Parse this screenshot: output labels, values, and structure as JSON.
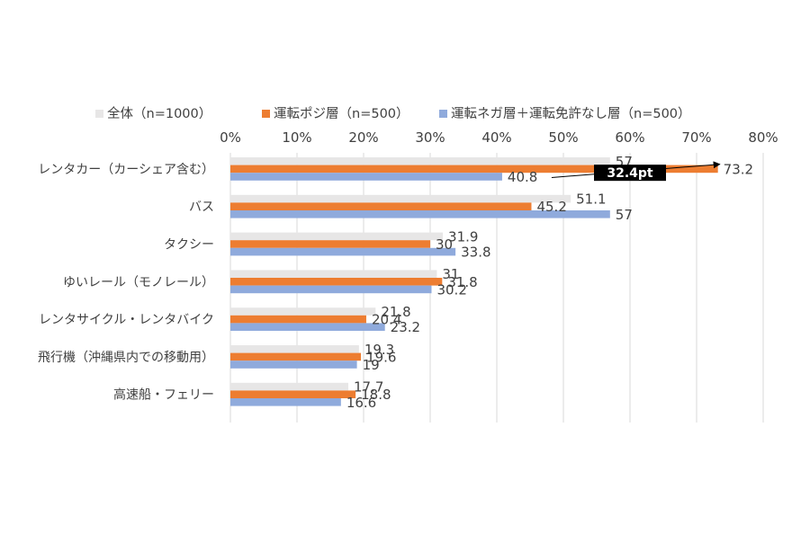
{
  "chart_data": {
    "type": "bar",
    "orientation": "horizontal",
    "categories": [
      "レンタカー（カーシェア含む）",
      "バス",
      "タクシー",
      "ゆいレール（モノレール）",
      "レンタサイクル・レンタバイク",
      "飛行機（沖縄県内での移動用）",
      "高速船・フェリー"
    ],
    "series": [
      {
        "name": "全体（n=1000）",
        "color": "#e7e6e6",
        "values": [
          57,
          51.1,
          31.9,
          31,
          21.8,
          19.3,
          17.7
        ]
      },
      {
        "name": "運転ポジ層（n=500）",
        "color": "#ed7d31",
        "values": [
          73.2,
          45.2,
          30,
          31.8,
          20.4,
          19.6,
          18.8
        ]
      },
      {
        "name": "運転ネガ層＋運転免許なし層（n=500）",
        "color": "#8faadc",
        "values": [
          40.8,
          57,
          33.8,
          30.2,
          23.2,
          19,
          16.6
        ]
      }
    ],
    "xlim": [
      0,
      80
    ],
    "xticks": [
      "0%",
      "10%",
      "20%",
      "30%",
      "40%",
      "50%",
      "60%",
      "70%",
      "80%"
    ],
    "xaxis_position": "top",
    "grid": true,
    "legend_position": "top",
    "annotation": {
      "text": "32.4pt",
      "category": "レンタカー（カーシェア含む）",
      "from_value": 40.8,
      "to_value": 73.2
    }
  }
}
